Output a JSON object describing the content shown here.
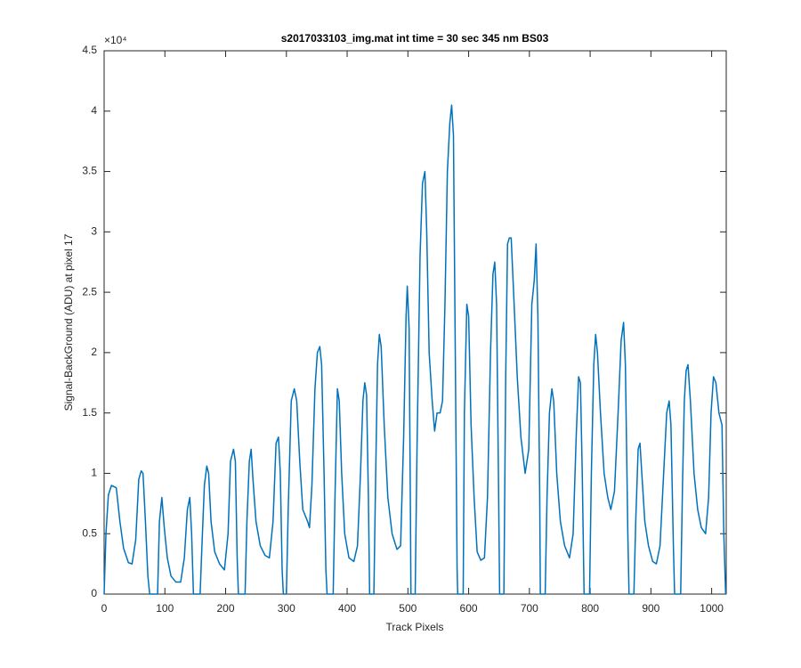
{
  "chart_data": {
    "type": "line",
    "title": "s2017033103_img.mat int time = 30 sec  345 nm BS03",
    "x_label": "Track Pixels",
    "y_label": "Signal-BackGround (ADU) at pixel 17",
    "y_exponent": "×10⁴",
    "xlim": [
      0,
      1024
    ],
    "ylim": [
      0,
      4.5
    ],
    "xticks": [
      0,
      100,
      200,
      300,
      400,
      500,
      600,
      700,
      800,
      900,
      1000
    ],
    "yticks": [
      0,
      0.5,
      1,
      1.5,
      2,
      2.5,
      3,
      3.5,
      4,
      4.5
    ],
    "grid": false,
    "series": [
      {
        "color": "#0072bd",
        "x": [
          0,
          3,
          7,
          12,
          20,
          26,
          32,
          40,
          46,
          52,
          57,
          61,
          64,
          68,
          72,
          75,
          88,
          91,
          95,
          99,
          104,
          110,
          118,
          126,
          132,
          137,
          141,
          144,
          147,
          158,
          161,
          165,
          169,
          172,
          176,
          182,
          190,
          198,
          204,
          208,
          213,
          216,
          219,
          221,
          232,
          235,
          239,
          242,
          245,
          250,
          257,
          265,
          272,
          278,
          283,
          287,
          290,
          293,
          295,
          300,
          303,
          308,
          313,
          317,
          322,
          327,
          331,
          335,
          338,
          342,
          347,
          351,
          355,
          358,
          362,
          365,
          367,
          377,
          380,
          384,
          387,
          391,
          396,
          403,
          411,
          417,
          422,
          426,
          429,
          432,
          435,
          437,
          444,
          447,
          450,
          453,
          456,
          461,
          467,
          474,
          482,
          488,
          493,
          497,
          499,
          502,
          504,
          505,
          512,
          515,
          520,
          524,
          528,
          531,
          535,
          540,
          544,
          548,
          553,
          557,
          561,
          565,
          569,
          572,
          575,
          578,
          581,
          582,
          591,
          593,
          597,
          600,
          604,
          609,
          614,
          620,
          626,
          631,
          636,
          640,
          643,
          646,
          649,
          651,
          658,
          661,
          664,
          667,
          670,
          674,
          680,
          686,
          693,
          699,
          704,
          708,
          711,
          714,
          717,
          718,
          726,
          729,
          733,
          737,
          740,
          745,
          751,
          758,
          766,
          772,
          777,
          781,
          784,
          787,
          790,
          799,
          802,
          806,
          809,
          812,
          817,
          823,
          829,
          834,
          840,
          846,
          851,
          855,
          858,
          862,
          864,
          872,
          875,
          879,
          882,
          885,
          890,
          896,
          903,
          909,
          915,
          921,
          926,
          930,
          933,
          937,
          939,
          949,
          952,
          955,
          958,
          961,
          965,
          971,
          977,
          983,
          990,
          995,
          999,
          1003,
          1007,
          1012,
          1017,
          1020,
          1023
        ],
        "values": [
          0,
          0.5,
          0.82,
          0.9,
          0.88,
          0.6,
          0.38,
          0.26,
          0.25,
          0.45,
          0.95,
          1.02,
          1.0,
          0.6,
          0.15,
          0,
          0,
          0.6,
          0.8,
          0.55,
          0.3,
          0.15,
          0.1,
          0.1,
          0.3,
          0.7,
          0.8,
          0.5,
          0,
          0,
          0.4,
          0.9,
          1.06,
          1.0,
          0.6,
          0.35,
          0.25,
          0.2,
          0.5,
          1.1,
          1.2,
          1.1,
          0.3,
          0,
          0,
          0.6,
          1.1,
          1.2,
          0.95,
          0.6,
          0.4,
          0.32,
          0.3,
          0.6,
          1.25,
          1.3,
          1.0,
          0.2,
          0,
          0,
          0.7,
          1.6,
          1.7,
          1.6,
          1.1,
          0.7,
          0.65,
          0.6,
          0.55,
          0.9,
          1.7,
          2.0,
          2.05,
          1.9,
          1.0,
          0.2,
          0,
          0,
          0.8,
          1.7,
          1.6,
          1.0,
          0.5,
          0.3,
          0.27,
          0.4,
          1.0,
          1.6,
          1.75,
          1.65,
          0.8,
          0,
          0,
          1.0,
          1.9,
          2.15,
          2.05,
          1.4,
          0.8,
          0.5,
          0.37,
          0.4,
          1.3,
          2.3,
          2.55,
          2.2,
          0.8,
          0,
          0,
          1.2,
          2.8,
          3.4,
          3.5,
          3.0,
          2.0,
          1.6,
          1.35,
          1.5,
          1.5,
          1.6,
          2.4,
          3.5,
          3.9,
          4.05,
          3.8,
          2.0,
          0.2,
          0,
          0,
          1.5,
          2.4,
          2.3,
          1.4,
          0.8,
          0.35,
          0.28,
          0.3,
          0.8,
          2.0,
          2.65,
          2.75,
          2.4,
          1.0,
          0,
          0,
          1.8,
          2.9,
          2.95,
          2.95,
          2.5,
          1.8,
          1.3,
          1.0,
          1.2,
          2.4,
          2.6,
          2.9,
          2.3,
          0.8,
          0,
          0,
          0.8,
          1.5,
          1.7,
          1.6,
          1.0,
          0.6,
          0.4,
          0.3,
          0.5,
          1.3,
          1.8,
          1.75,
          1.0,
          0,
          0,
          1.0,
          1.9,
          2.15,
          2.0,
          1.5,
          1.0,
          0.8,
          0.7,
          0.85,
          1.5,
          2.1,
          2.25,
          1.9,
          0.5,
          0,
          0,
          0.6,
          1.2,
          1.25,
          1.0,
          0.6,
          0.4,
          0.27,
          0.25,
          0.4,
          1.0,
          1.5,
          1.6,
          1.4,
          0.4,
          0,
          0,
          0.9,
          1.6,
          1.85,
          1.9,
          1.6,
          1.0,
          0.7,
          0.55,
          0.5,
          0.8,
          1.5,
          1.8,
          1.75,
          1.5,
          1.4,
          0.5,
          0
        ]
      }
    ]
  }
}
